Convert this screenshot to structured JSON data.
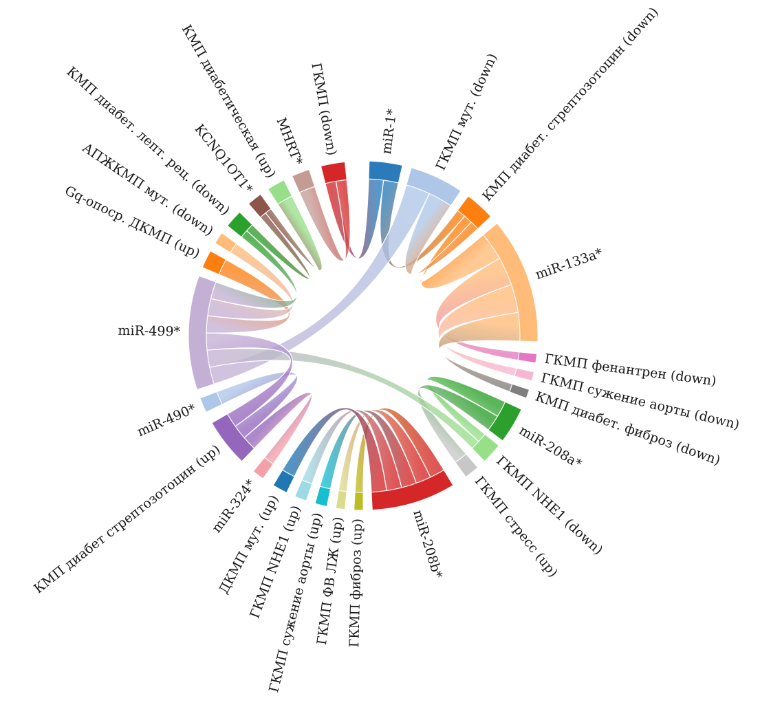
{
  "segments": [
    {
      "label": "miR-1*",
      "color": "#2b7bba",
      "type": "mirna"
    },
    {
      "label": "ГКМП мут. (down)",
      "color": "#aec7e8",
      "type": "condition"
    },
    {
      "label": "КМП диабет. стрептозотоцин (down)",
      "color": "#ff7f0e",
      "type": "condition"
    },
    {
      "label": "miR-133a*",
      "color": "#ffbb78",
      "type": "mirna"
    },
    {
      "label": "ГКМП фенантрен (down)",
      "color": "#e377c2",
      "type": "condition"
    },
    {
      "label": "ГКМП сужение аорты (down)",
      "color": "#f7b6d2",
      "type": "condition"
    },
    {
      "label": "КМП диабет. фиброз (down)",
      "color": "#7f7f7f",
      "type": "condition"
    },
    {
      "label": "miR-208a*",
      "color": "#2ca02c",
      "type": "mirna"
    },
    {
      "label": "ГКМП NHE1 (down)",
      "color": "#98df8a",
      "type": "condition"
    },
    {
      "label": "ГКМП стресс (up)",
      "color": "#c7c7c7",
      "type": "condition"
    },
    {
      "label": "miR-208b*",
      "color": "#d62728",
      "type": "mirna"
    },
    {
      "label": "ГКМП фиброз (up)",
      "color": "#bcbd22",
      "type": "condition"
    },
    {
      "label": "ГКМП ФВ ЛЖ (up)",
      "color": "#dbdb8d",
      "type": "condition"
    },
    {
      "label": "ГКМП сужение аорты (up)",
      "color": "#17becf",
      "type": "condition"
    },
    {
      "label": "ГКМП NHE1 (up)",
      "color": "#9edae5",
      "type": "condition"
    },
    {
      "label": "ДКМП мут. (up)",
      "color": "#1f77b4",
      "type": "condition"
    },
    {
      "label": "miR-324*",
      "color": "#f4a0a8",
      "type": "mirna"
    },
    {
      "label": "КМП диабет стрептозотоцин (up)",
      "color": "#9467bd",
      "type": "condition"
    },
    {
      "label": "miR-490*",
      "color": "#aec7e8",
      "type": "mirna"
    },
    {
      "label": "miR-499*",
      "color": "#c5b0d5",
      "type": "mirna"
    },
    {
      "label": "Gq-опоср. ДКМП (up)",
      "color": "#ff7f0e",
      "type": "condition"
    },
    {
      "label": "АПЖКМП мут. (down)",
      "color": "#ffbb78",
      "type": "condition"
    },
    {
      "label": "КМП диабет. лепт. рец. (down)",
      "color": "#2ca02c",
      "type": "condition"
    },
    {
      "label": "KCNQ1OT1*",
      "color": "#8c564b",
      "type": "mirna"
    },
    {
      "label": "КМП диабетическая (up)",
      "color": "#98df8a",
      "type": "condition"
    },
    {
      "label": "MHRT*",
      "color": "#c49c94",
      "type": "mirna"
    },
    {
      "label": "ГКМП (down)",
      "color": "#d62728",
      "type": "condition"
    }
  ],
  "links": [
    {
      "source": "miR-1*",
      "target": "ГКМП (down)"
    },
    {
      "source": "miR-1*",
      "target": "КМП диабет. стрептозотоцин (down)"
    },
    {
      "source": "miR-133a*",
      "target": "КМП диабет. стрептозотоцин (down)"
    },
    {
      "source": "miR-133a*",
      "target": "ГКМП фенантрен (down)"
    },
    {
      "source": "miR-133a*",
      "target": "ГКМП сужение аорты (down)"
    },
    {
      "source": "miR-133a*",
      "target": "КМП диабет. фиброз (down)"
    },
    {
      "source": "miR-208a*",
      "target": "ГКМП NHE1 (down)"
    },
    {
      "source": "miR-208a*",
      "target": "ГКМП стресс (up)"
    },
    {
      "source": "miR-208b*",
      "target": "ГКМП фиброз (up)"
    },
    {
      "source": "miR-208b*",
      "target": "ГКМП ФВ ЛЖ (up)"
    },
    {
      "source": "miR-208b*",
      "target": "ГКМП сужение аорты (up)"
    },
    {
      "source": "miR-208b*",
      "target": "ГКМП NHE1 (up)"
    },
    {
      "source": "miR-208b*",
      "target": "ДКМП мут. (up)"
    },
    {
      "source": "miR-324*",
      "target": "КМП диабет стрептозотоцин (up)"
    },
    {
      "source": "miR-490*",
      "target": "КМП диабет стрептозотоцин (up)"
    },
    {
      "source": "miR-499*",
      "target": "ГКМП мут. (down)"
    },
    {
      "source": "miR-499*",
      "target": "ГКМП NHE1 (down)"
    },
    {
      "source": "miR-499*",
      "target": "КМП диабет стрептозотоцин (up)"
    },
    {
      "source": "miR-499*",
      "target": "Gq-опоср. ДКМП (up)"
    },
    {
      "source": "miR-499*",
      "target": "АПЖКМП мут. (down)"
    },
    {
      "source": "miR-499*",
      "target": "КМП диабет. лепт. рец. (down)"
    },
    {
      "source": "KCNQ1OT1*",
      "target": "КМП диабет. лепт. рец. (down)"
    },
    {
      "source": "KCNQ1OT1*",
      "target": "КМП диабетическая (up)"
    },
    {
      "source": "MHRT*",
      "target": "ГКМП (down)"
    },
    {
      "source": "ГКМП мут. (down)",
      "target": "КМП диабет. стрептозотоцин (down)"
    }
  ]
}
